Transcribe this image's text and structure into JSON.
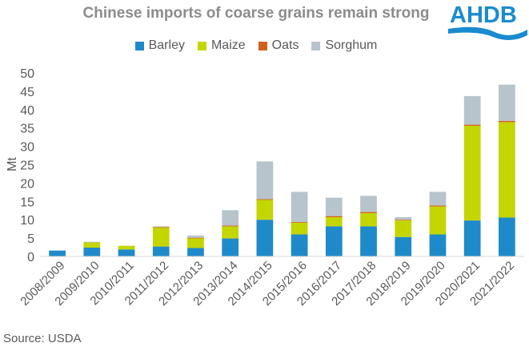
{
  "title": "Chinese imports of coarse grains remain strong",
  "logo_text": "AHDB",
  "source": "Source: USDA",
  "colors": {
    "Barley": "#1f8ac9",
    "Maize": "#c3d600",
    "Oats": "#d5601a",
    "Sorghum": "#b7c4cc",
    "brand": "#1a8bcf"
  },
  "chart_data": {
    "type": "bar",
    "stacked": true,
    "title": "Chinese imports of coarse grains remain strong",
    "xlabel": "",
    "ylabel": "Mt",
    "ylim": [
      0,
      50
    ],
    "yticks": [
      0,
      5,
      10,
      15,
      20,
      25,
      30,
      35,
      40,
      45,
      50
    ],
    "legend_position": "top",
    "categories": [
      "2008/2009",
      "2009/2010",
      "2010/2011",
      "2011/2012",
      "2012/2013",
      "2013/2014",
      "2014/2015",
      "2015/2016",
      "2016/2017",
      "2017/2018",
      "2018/2019",
      "2019/2020",
      "2020/2021",
      "2021/2022"
    ],
    "series": [
      {
        "name": "Barley",
        "values": [
          1.6,
          2.4,
          1.9,
          2.7,
          2.3,
          4.9,
          10.0,
          6.0,
          8.2,
          8.2,
          5.3,
          6.0,
          9.8,
          10.6
        ]
      },
      {
        "name": "Maize",
        "values": [
          0.0,
          1.5,
          1.0,
          5.2,
          2.7,
          3.3,
          5.4,
          3.2,
          2.5,
          3.6,
          4.5,
          7.6,
          25.8,
          26.0
        ]
      },
      {
        "name": "Oats",
        "values": [
          0.0,
          0.0,
          0.0,
          0.1,
          0.1,
          0.2,
          0.2,
          0.2,
          0.3,
          0.3,
          0.2,
          0.3,
          0.3,
          0.3
        ]
      },
      {
        "name": "Sorghum",
        "values": [
          0.0,
          0.1,
          0.0,
          0.2,
          0.6,
          4.2,
          10.3,
          8.2,
          5.0,
          4.4,
          0.7,
          3.7,
          7.8,
          9.9
        ]
      }
    ]
  }
}
